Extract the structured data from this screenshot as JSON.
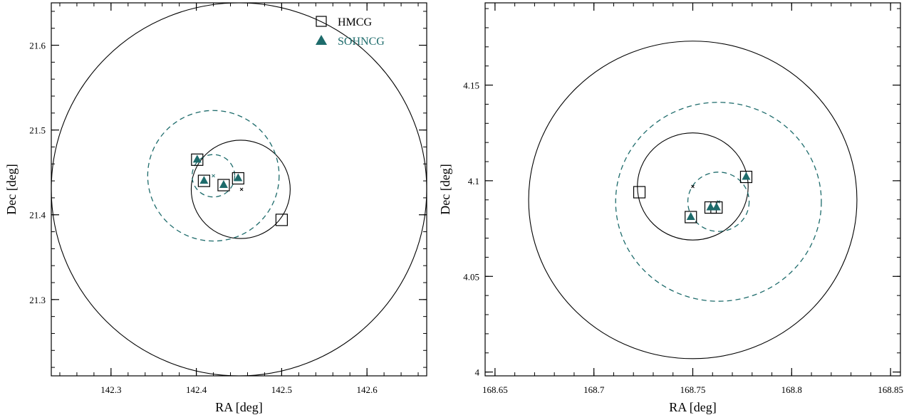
{
  "colors": {
    "teal": "#1d6b6b",
    "black": "#000000"
  },
  "legend": [
    {
      "label": "HMCG",
      "marker": "open-square",
      "color": "#000000"
    },
    {
      "label": "SOHNCG",
      "marker": "filled-triangle",
      "color": "#1d6b6b"
    }
  ],
  "chart_data": [
    {
      "type": "scatter",
      "xlabel": "RA [deg]",
      "ylabel": "Dec [deg]",
      "xlim": [
        142.23,
        142.67
      ],
      "ylim": [
        21.21,
        21.65
      ],
      "xticks": [
        142.3,
        142.4,
        142.5,
        142.6
      ],
      "xtick_labels": [
        "142.3",
        "142.4",
        "142.5",
        "142.6"
      ],
      "yticks": [
        21.3,
        21.4,
        21.5,
        21.6
      ],
      "ytick_labels": [
        "21.3",
        "21.4",
        "21.5",
        "21.6"
      ],
      "x_minor_step": 0.02,
      "y_minor_step": 0.02,
      "legend_position": "top-right",
      "circles": [
        {
          "cx": 142.45,
          "cy": 21.43,
          "r": 0.22,
          "style": "solid",
          "color": "#000000"
        },
        {
          "cx": 142.452,
          "cy": 21.43,
          "r": 0.058,
          "style": "solid",
          "color": "#000000"
        },
        {
          "cx": 142.42,
          "cy": 21.446,
          "r": 0.077,
          "style": "dashed",
          "color": "#1d6b6b"
        },
        {
          "cx": 142.42,
          "cy": 21.446,
          "r": 0.025,
          "style": "dashed",
          "color": "#1d6b6b"
        }
      ],
      "series": [
        {
          "name": "HMCG",
          "marker": "open-square",
          "x": [
            142.401,
            142.409,
            142.432,
            142.449,
            142.5
          ],
          "y": [
            21.465,
            21.44,
            21.435,
            21.443,
            21.394
          ]
        },
        {
          "name": "SOHNCG",
          "marker": "filled-triangle",
          "x": [
            142.401,
            142.409,
            142.432,
            142.449
          ],
          "y": [
            21.465,
            21.44,
            21.435,
            21.443
          ]
        }
      ],
      "centers": [
        {
          "x": 142.453,
          "y": 21.43,
          "color": "#000000"
        },
        {
          "x": 142.42,
          "y": 21.446,
          "color": "#1d6b6b"
        }
      ]
    },
    {
      "type": "scatter",
      "xlabel": "RA [deg]",
      "ylabel": "Dec [deg]",
      "xlim": [
        168.645,
        168.855
      ],
      "ylim": [
        3.998,
        4.193
      ],
      "xticks": [
        168.65,
        168.7,
        168.75,
        168.8,
        168.85
      ],
      "xtick_labels": [
        "168.65",
        "168.7",
        "168.75",
        "168.8",
        "168.85"
      ],
      "yticks": [
        4.0,
        4.05,
        4.1,
        4.15
      ],
      "ytick_labels": [
        "4",
        "4.05",
        "4.1",
        "4.15"
      ],
      "x_minor_step": 0.01,
      "y_minor_step": 0.01,
      "circles": [
        {
          "cx": 168.75,
          "cy": 4.09,
          "r": 0.083,
          "style": "solid",
          "color": "#000000"
        },
        {
          "cx": 168.75,
          "cy": 4.097,
          "r": 0.028,
          "style": "solid",
          "color": "#000000"
        },
        {
          "cx": 168.763,
          "cy": 4.089,
          "r": 0.052,
          "style": "dashed",
          "color": "#1d6b6b"
        },
        {
          "cx": 168.763,
          "cy": 4.089,
          "r": 0.0155,
          "style": "dashed",
          "color": "#1d6b6b"
        }
      ],
      "series": [
        {
          "name": "HMCG",
          "marker": "open-square",
          "x": [
            168.723,
            168.749,
            168.759,
            168.762,
            168.777
          ],
          "y": [
            4.094,
            4.081,
            4.086,
            4.086,
            4.102
          ]
        },
        {
          "name": "SOHNCG",
          "marker": "filled-triangle",
          "x": [
            168.749,
            168.759,
            168.762,
            168.777
          ],
          "y": [
            4.081,
            4.086,
            4.086,
            4.102
          ]
        }
      ],
      "centers": [
        {
          "x": 168.75,
          "y": 4.097,
          "color": "#000000"
        },
        {
          "x": 168.763,
          "y": 4.089,
          "color": "#1d6b6b"
        }
      ]
    }
  ]
}
